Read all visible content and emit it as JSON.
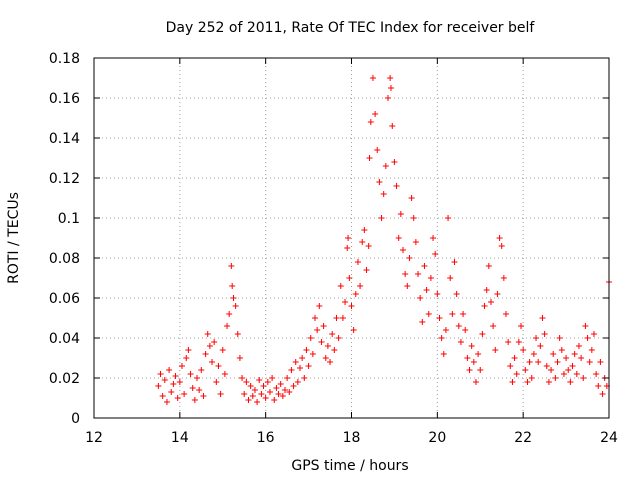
{
  "chart_data": {
    "type": "scatter",
    "title": "Day 252 of 2011, Rate Of TEC Index for receiver belf",
    "xlabel": "GPS time / hours",
    "ylabel": "ROTI / TECUs",
    "xlim": [
      12,
      24
    ],
    "ylim": [
      0,
      0.18
    ],
    "xticks": [
      12,
      14,
      16,
      18,
      20,
      22,
      24
    ],
    "yticks": [
      0,
      0.02,
      0.04,
      0.06,
      0.08,
      0.1,
      0.12,
      0.14,
      0.16,
      0.18
    ],
    "xtick_labels": [
      "12",
      "14",
      "16",
      "18",
      "20",
      "22",
      "24"
    ],
    "ytick_labels": [
      "0",
      "0.02",
      "0.04",
      "0.06",
      "0.08",
      "0.1",
      "0.12",
      "0.14",
      "0.16",
      "0.18"
    ],
    "grid": true,
    "marker": "+",
    "marker_color": "#ff0000",
    "series": [
      {
        "name": "ROTI",
        "points": [
          [
            13.5,
            0.016
          ],
          [
            13.55,
            0.022
          ],
          [
            13.6,
            0.011
          ],
          [
            13.65,
            0.019
          ],
          [
            13.7,
            0.008
          ],
          [
            13.75,
            0.024
          ],
          [
            13.8,
            0.013
          ],
          [
            13.85,
            0.017
          ],
          [
            13.9,
            0.021
          ],
          [
            13.95,
            0.01
          ],
          [
            14.0,
            0.018
          ],
          [
            14.05,
            0.026
          ],
          [
            14.1,
            0.012
          ],
          [
            14.15,
            0.03
          ],
          [
            14.2,
            0.034
          ],
          [
            14.25,
            0.022
          ],
          [
            14.3,
            0.015
          ],
          [
            14.35,
            0.009
          ],
          [
            14.4,
            0.02
          ],
          [
            14.45,
            0.014
          ],
          [
            14.5,
            0.024
          ],
          [
            14.55,
            0.011
          ],
          [
            14.6,
            0.032
          ],
          [
            14.65,
            0.042
          ],
          [
            14.7,
            0.036
          ],
          [
            14.75,
            0.028
          ],
          [
            14.8,
            0.038
          ],
          [
            14.85,
            0.018
          ],
          [
            14.9,
            0.026
          ],
          [
            14.95,
            0.012
          ],
          [
            15.0,
            0.034
          ],
          [
            15.05,
            0.022
          ],
          [
            15.1,
            0.046
          ],
          [
            15.15,
            0.052
          ],
          [
            15.2,
            0.076
          ],
          [
            15.22,
            0.066
          ],
          [
            15.25,
            0.06
          ],
          [
            15.3,
            0.056
          ],
          [
            15.35,
            0.042
          ],
          [
            15.4,
            0.03
          ],
          [
            15.45,
            0.02
          ],
          [
            15.5,
            0.012
          ],
          [
            15.55,
            0.018
          ],
          [
            15.6,
            0.009
          ],
          [
            15.65,
            0.016
          ],
          [
            15.7,
            0.011
          ],
          [
            15.75,
            0.014
          ],
          [
            15.8,
            0.008
          ],
          [
            15.85,
            0.019
          ],
          [
            15.9,
            0.012
          ],
          [
            15.95,
            0.016
          ],
          [
            16.0,
            0.01
          ],
          [
            16.05,
            0.018
          ],
          [
            16.1,
            0.013
          ],
          [
            16.15,
            0.02
          ],
          [
            16.2,
            0.009
          ],
          [
            16.25,
            0.015
          ],
          [
            16.3,
            0.012
          ],
          [
            16.35,
            0.017
          ],
          [
            16.4,
            0.011
          ],
          [
            16.45,
            0.014
          ],
          [
            16.5,
            0.02
          ],
          [
            16.55,
            0.013
          ],
          [
            16.6,
            0.024
          ],
          [
            16.65,
            0.016
          ],
          [
            16.7,
            0.028
          ],
          [
            16.75,
            0.018
          ],
          [
            16.8,
            0.025
          ],
          [
            16.85,
            0.03
          ],
          [
            16.9,
            0.02
          ],
          [
            16.95,
            0.034
          ],
          [
            17.0,
            0.026
          ],
          [
            17.05,
            0.04
          ],
          [
            17.1,
            0.032
          ],
          [
            17.15,
            0.05
          ],
          [
            17.2,
            0.044
          ],
          [
            17.25,
            0.056
          ],
          [
            17.3,
            0.038
          ],
          [
            17.35,
            0.046
          ],
          [
            17.4,
            0.03
          ],
          [
            17.45,
            0.036
          ],
          [
            17.5,
            0.028
          ],
          [
            17.55,
            0.042
          ],
          [
            17.6,
            0.034
          ],
          [
            17.65,
            0.05
          ],
          [
            17.7,
            0.04
          ],
          [
            17.75,
            0.066
          ],
          [
            17.8,
            0.05
          ],
          [
            17.85,
            0.058
          ],
          [
            17.9,
            0.085
          ],
          [
            17.92,
            0.09
          ],
          [
            17.95,
            0.07
          ],
          [
            18.0,
            0.056
          ],
          [
            18.05,
            0.044
          ],
          [
            18.1,
            0.062
          ],
          [
            18.15,
            0.078
          ],
          [
            18.2,
            0.066
          ],
          [
            18.25,
            0.088
          ],
          [
            18.3,
            0.094
          ],
          [
            18.35,
            0.074
          ],
          [
            18.4,
            0.086
          ],
          [
            18.42,
            0.13
          ],
          [
            18.45,
            0.148
          ],
          [
            18.5,
            0.17
          ],
          [
            18.55,
            0.152
          ],
          [
            18.6,
            0.134
          ],
          [
            18.65,
            0.118
          ],
          [
            18.7,
            0.1
          ],
          [
            18.75,
            0.112
          ],
          [
            18.8,
            0.126
          ],
          [
            18.85,
            0.16
          ],
          [
            18.9,
            0.17
          ],
          [
            18.92,
            0.165
          ],
          [
            18.95,
            0.146
          ],
          [
            19.0,
            0.128
          ],
          [
            19.05,
            0.116
          ],
          [
            19.1,
            0.09
          ],
          [
            19.15,
            0.102
          ],
          [
            19.2,
            0.084
          ],
          [
            19.25,
            0.072
          ],
          [
            19.3,
            0.066
          ],
          [
            19.35,
            0.08
          ],
          [
            19.4,
            0.11
          ],
          [
            19.45,
            0.1
          ],
          [
            19.5,
            0.088
          ],
          [
            19.55,
            0.072
          ],
          [
            19.6,
            0.06
          ],
          [
            19.65,
            0.048
          ],
          [
            19.7,
            0.076
          ],
          [
            19.75,
            0.064
          ],
          [
            19.8,
            0.052
          ],
          [
            19.85,
            0.07
          ],
          [
            19.9,
            0.09
          ],
          [
            19.95,
            0.082
          ],
          [
            20.0,
            0.062
          ],
          [
            20.05,
            0.05
          ],
          [
            20.1,
            0.04
          ],
          [
            20.15,
            0.032
          ],
          [
            20.2,
            0.044
          ],
          [
            20.25,
            0.1
          ],
          [
            20.3,
            0.07
          ],
          [
            20.35,
            0.052
          ],
          [
            20.4,
            0.078
          ],
          [
            20.45,
            0.062
          ],
          [
            20.5,
            0.046
          ],
          [
            20.55,
            0.038
          ],
          [
            20.6,
            0.052
          ],
          [
            20.65,
            0.044
          ],
          [
            20.7,
            0.03
          ],
          [
            20.75,
            0.024
          ],
          [
            20.8,
            0.036
          ],
          [
            20.85,
            0.028
          ],
          [
            20.9,
            0.018
          ],
          [
            20.95,
            0.032
          ],
          [
            21.0,
            0.024
          ],
          [
            21.05,
            0.042
          ],
          [
            21.1,
            0.056
          ],
          [
            21.15,
            0.064
          ],
          [
            21.2,
            0.076
          ],
          [
            21.25,
            0.058
          ],
          [
            21.3,
            0.046
          ],
          [
            21.35,
            0.034
          ],
          [
            21.4,
            0.062
          ],
          [
            21.45,
            0.09
          ],
          [
            21.5,
            0.086
          ],
          [
            21.55,
            0.07
          ],
          [
            21.6,
            0.052
          ],
          [
            21.65,
            0.038
          ],
          [
            21.7,
            0.026
          ],
          [
            21.75,
            0.018
          ],
          [
            21.8,
            0.03
          ],
          [
            21.85,
            0.022
          ],
          [
            21.9,
            0.038
          ],
          [
            21.95,
            0.046
          ],
          [
            22.0,
            0.034
          ],
          [
            22.05,
            0.024
          ],
          [
            22.1,
            0.018
          ],
          [
            22.15,
            0.028
          ],
          [
            22.2,
            0.02
          ],
          [
            22.25,
            0.032
          ],
          [
            22.3,
            0.04
          ],
          [
            22.35,
            0.028
          ],
          [
            22.4,
            0.036
          ],
          [
            22.45,
            0.05
          ],
          [
            22.5,
            0.042
          ],
          [
            22.55,
            0.026
          ],
          [
            22.6,
            0.018
          ],
          [
            22.65,
            0.024
          ],
          [
            22.7,
            0.032
          ],
          [
            22.75,
            0.02
          ],
          [
            22.8,
            0.028
          ],
          [
            22.85,
            0.04
          ],
          [
            22.9,
            0.034
          ],
          [
            22.95,
            0.022
          ],
          [
            23.0,
            0.03
          ],
          [
            23.05,
            0.024
          ],
          [
            23.1,
            0.018
          ],
          [
            23.15,
            0.026
          ],
          [
            23.2,
            0.032
          ],
          [
            23.25,
            0.022
          ],
          [
            23.3,
            0.036
          ],
          [
            23.35,
            0.03
          ],
          [
            23.4,
            0.02
          ],
          [
            23.45,
            0.046
          ],
          [
            23.5,
            0.04
          ],
          [
            23.55,
            0.028
          ],
          [
            23.6,
            0.034
          ],
          [
            23.65,
            0.042
          ],
          [
            23.7,
            0.022
          ],
          [
            23.75,
            0.016
          ],
          [
            23.8,
            0.028
          ],
          [
            23.85,
            0.012
          ],
          [
            23.9,
            0.02
          ],
          [
            23.95,
            0.016
          ],
          [
            24.0,
            0.068
          ]
        ]
      }
    ]
  }
}
